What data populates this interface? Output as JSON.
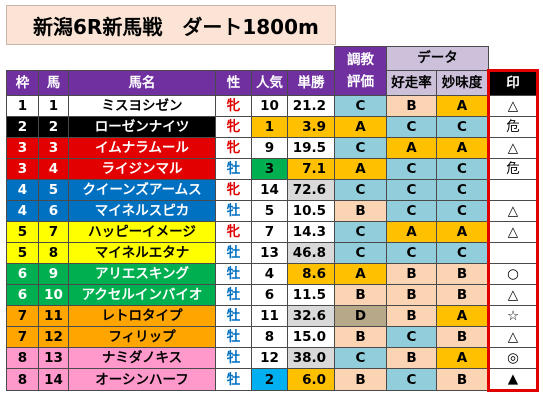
{
  "title": "新潟6R新馬戦　ダート1800m",
  "header": {
    "group_chokyo": "調教",
    "group_data": "データ",
    "waku": "枠",
    "uma": "馬",
    "bamei": "馬名",
    "sei": "性",
    "ninki": "人気",
    "tansho": "単勝",
    "hyoka": "評価",
    "kosoritsu": "好走率",
    "myomido": "妙味度",
    "shirushi": "印"
  },
  "colors": {
    "waku1": "#ffffff",
    "waku2": "#000000",
    "waku3": "#e30000",
    "waku4": "#0070c0",
    "waku5": "#ffff00",
    "waku6": "#00b050",
    "waku7": "#ffa500",
    "waku8": "#ff99cc",
    "grade_A": "#ffc000",
    "grade_B": "#fbd4b4",
    "grade_C": "#92cddc",
    "grade_D": "#b8a88a",
    "sex_filly": "#e00000",
    "sex_colt": "#0070c0",
    "pop_1": "#ffc000",
    "pop_2": "#00b0f0",
    "pop_3": "#00b050",
    "odds_fav": "#ffc000",
    "odds_long": "#d9d9d9"
  },
  "rows": [
    {
      "waku": "1",
      "uma": "1",
      "name": "ミスヨシゼン",
      "sex": "牝",
      "ninki": "10",
      "odds": "21.2",
      "hyoka": "C",
      "kosoritsu": "B",
      "myomido": "A",
      "mark": "△"
    },
    {
      "waku": "2",
      "uma": "2",
      "name": "ローゼンナイツ",
      "sex": "牝",
      "ninki": "1",
      "odds": "3.9",
      "hyoka": "A",
      "kosoritsu": "C",
      "myomido": "C",
      "mark": "危"
    },
    {
      "waku": "3",
      "uma": "3",
      "name": "イムナラムール",
      "sex": "牝",
      "ninki": "9",
      "odds": "19.5",
      "hyoka": "C",
      "kosoritsu": "A",
      "myomido": "A",
      "mark": "△"
    },
    {
      "waku": "3",
      "uma": "4",
      "name": "ライジンマル",
      "sex": "牡",
      "ninki": "3",
      "odds": "7.1",
      "hyoka": "A",
      "kosoritsu": "C",
      "myomido": "C",
      "mark": "危"
    },
    {
      "waku": "4",
      "uma": "5",
      "name": "クイーンズアームス",
      "sex": "牝",
      "ninki": "14",
      "odds": "72.6",
      "hyoka": "C",
      "kosoritsu": "C",
      "myomido": "C",
      "mark": ""
    },
    {
      "waku": "4",
      "uma": "6",
      "name": "マイネルスピカ",
      "sex": "牡",
      "ninki": "5",
      "odds": "10.5",
      "hyoka": "B",
      "kosoritsu": "C",
      "myomido": "C",
      "mark": "△"
    },
    {
      "waku": "5",
      "uma": "7",
      "name": "ハッピーイメージ",
      "sex": "牝",
      "ninki": "7",
      "odds": "14.3",
      "hyoka": "C",
      "kosoritsu": "A",
      "myomido": "A",
      "mark": "△"
    },
    {
      "waku": "5",
      "uma": "8",
      "name": "マイネルエタナ",
      "sex": "牡",
      "ninki": "13",
      "odds": "46.8",
      "hyoka": "C",
      "kosoritsu": "C",
      "myomido": "C",
      "mark": ""
    },
    {
      "waku": "6",
      "uma": "9",
      "name": "アリエスキング",
      "sex": "牡",
      "ninki": "4",
      "odds": "8.6",
      "hyoka": "A",
      "kosoritsu": "B",
      "myomido": "B",
      "mark": "○"
    },
    {
      "waku": "6",
      "uma": "10",
      "name": "アクセルインバイオ",
      "sex": "牡",
      "ninki": "6",
      "odds": "11.5",
      "hyoka": "B",
      "kosoritsu": "B",
      "myomido": "B",
      "mark": "△"
    },
    {
      "waku": "7",
      "uma": "11",
      "name": "レトロタイプ",
      "sex": "牡",
      "ninki": "11",
      "odds": "32.6",
      "hyoka": "D",
      "kosoritsu": "B",
      "myomido": "A",
      "mark": "☆"
    },
    {
      "waku": "7",
      "uma": "12",
      "name": "フィリップ",
      "sex": "牡",
      "ninki": "8",
      "odds": "15.0",
      "hyoka": "B",
      "kosoritsu": "C",
      "myomido": "B",
      "mark": "△"
    },
    {
      "waku": "8",
      "uma": "13",
      "name": "ナミダノキス",
      "sex": "牡",
      "ninki": "12",
      "odds": "38.0",
      "hyoka": "C",
      "kosoritsu": "B",
      "myomido": "A",
      "mark": "◎"
    },
    {
      "waku": "8",
      "uma": "14",
      "name": "オーシンハーフ",
      "sex": "牡",
      "ninki": "2",
      "odds": "6.0",
      "hyoka": "B",
      "kosoritsu": "C",
      "myomido": "B",
      "mark": "▲"
    }
  ]
}
